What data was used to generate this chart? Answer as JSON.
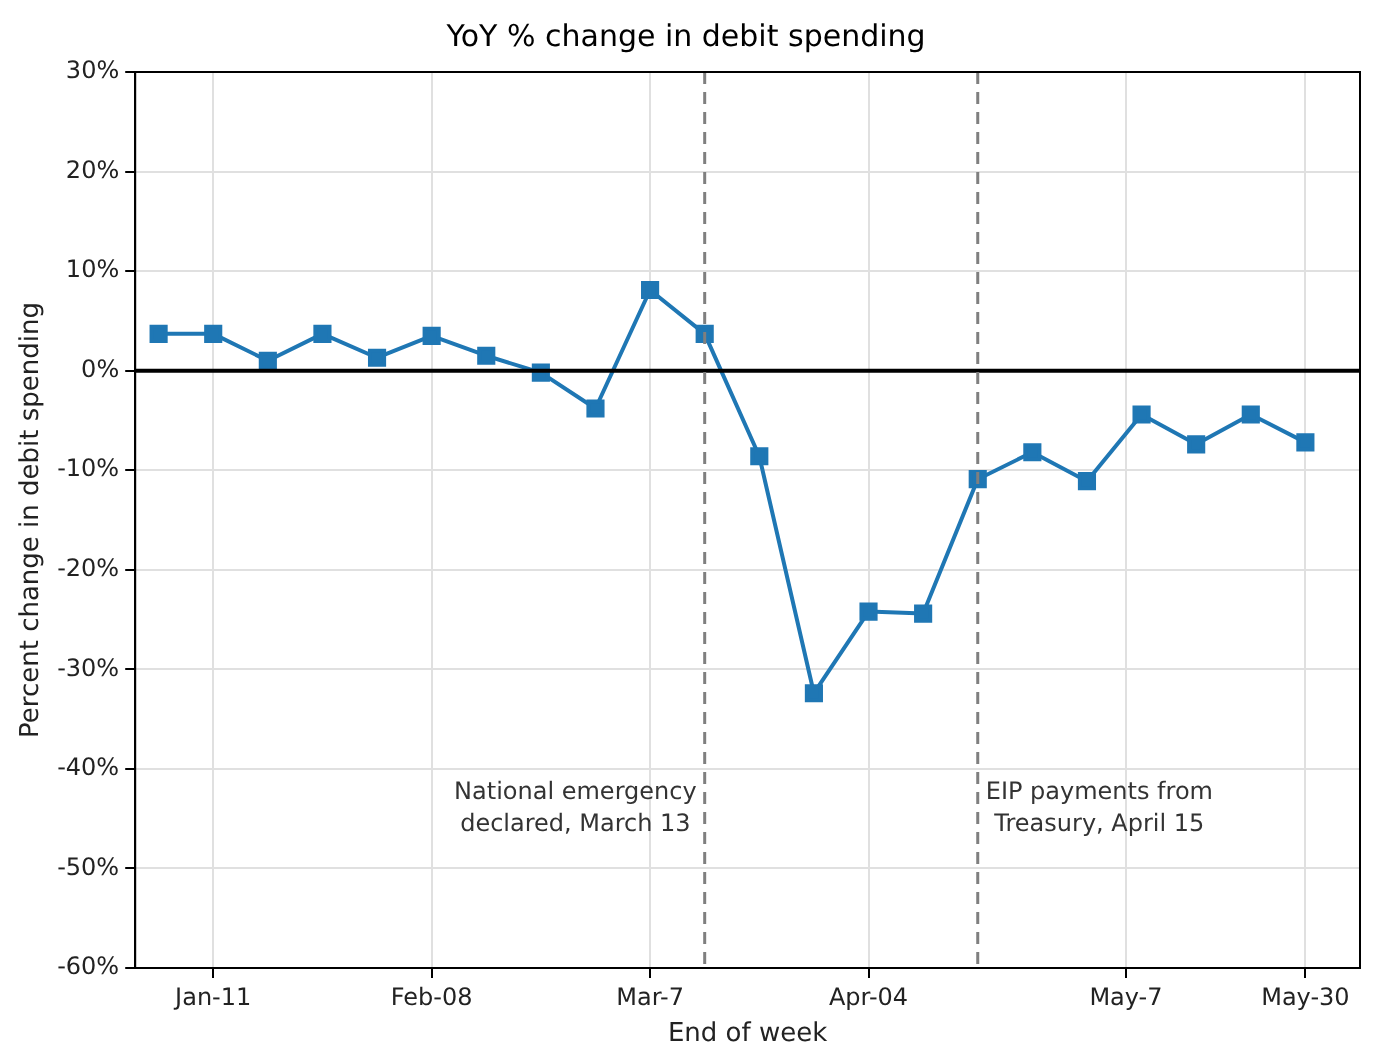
{
  "chart_data": {
    "type": "line",
    "title": "YoY % change in debit spending",
    "xlabel": "End of week",
    "ylabel": "Percent change in debit spending",
    "x": [
      "--01-04",
      "--01-11",
      "--01-18",
      "--01-25",
      "--02-01",
      "--02-08",
      "--02-15",
      "--02-22",
      "--02-29",
      "--03-07",
      "--03-14",
      "--03-21",
      "--03-28",
      "--04-04",
      "--04-11",
      "--04-18",
      "--04-25",
      "--05-02",
      "--05-09",
      "--05-16",
      "--05-23",
      "--05-30"
    ],
    "series": [
      {
        "color": "#1f77b4",
        "values": [
          3.7,
          3.7,
          1.0,
          3.7,
          1.3,
          3.5,
          1.5,
          -0.2,
          -3.8,
          8.1,
          3.7,
          -8.6,
          -32.4,
          -24.2,
          -24.4,
          -10.9,
          -8.2,
          -11.1,
          -4.4,
          -7.4,
          -4.4,
          -7.2
        ]
      }
    ],
    "xlim": [
      "--01-01",
      "--06-06"
    ],
    "xticks": [
      {
        "value": "--01-11",
        "label": "Jan-11"
      },
      {
        "value": "--02-08",
        "label": "Feb-08"
      },
      {
        "value": "--03-07",
        "label": "Mar-7"
      },
      {
        "value": "--04-04",
        "label": "Apr-04"
      },
      {
        "value": "--05-07",
        "label": "May-7"
      },
      {
        "value": "--05-30",
        "label": "May-30"
      }
    ],
    "ylim": [
      -60,
      30
    ],
    "yticks": [
      {
        "value": -60,
        "label": "-60%"
      },
      {
        "value": -50,
        "label": "-50%"
      },
      {
        "value": -40,
        "label": "-40%"
      },
      {
        "value": -30,
        "label": "-30%"
      },
      {
        "value": -20,
        "label": "-20%"
      },
      {
        "value": -10,
        "label": "-10%"
      },
      {
        "value": 0,
        "label": "0%"
      },
      {
        "value": 10,
        "label": "10%"
      },
      {
        "value": 20,
        "label": "20%"
      },
      {
        "value": 30,
        "label": "30%"
      }
    ],
    "ref_lines": [
      {
        "axis": "y",
        "value": 0,
        "color": "#000000",
        "line_style": "solid"
      },
      {
        "axis": "x",
        "value": "--03-14",
        "label": "National emergency\ndeclared, March 13",
        "color": "#7f7f7f",
        "line_style": "dashed"
      },
      {
        "axis": "x",
        "value": "--04-18",
        "label": "EIP payments from\nTreasury, April 15",
        "color": "#7f7f7f",
        "line_style": "dashed"
      }
    ],
    "grid": true,
    "marker": "square",
    "line_style": "solid"
  }
}
